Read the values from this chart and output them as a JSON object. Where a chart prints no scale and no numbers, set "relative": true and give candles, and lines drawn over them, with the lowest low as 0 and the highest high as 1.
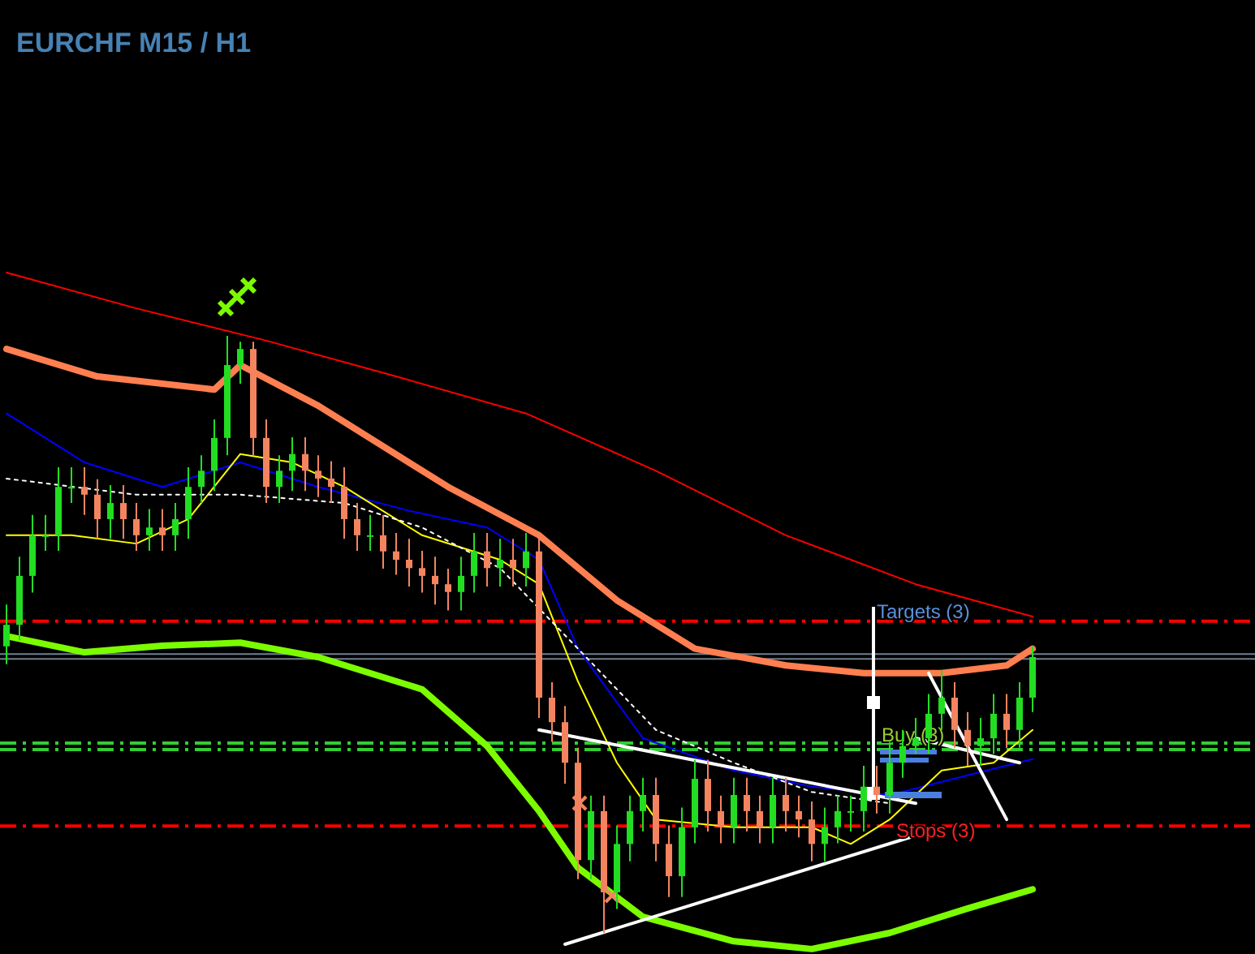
{
  "chart_data": {
    "type": "candlestick",
    "title": "EURCHF M15 / H1",
    "relative": true,
    "tick_labels": false,
    "categories": [
      null,
      null,
      null,
      null,
      null,
      null,
      null,
      null,
      null,
      null,
      null,
      null,
      null,
      null,
      null,
      null,
      null,
      null,
      null,
      null,
      null,
      null,
      null,
      null,
      null,
      null,
      null,
      null,
      null,
      null,
      null,
      null,
      null,
      null,
      null,
      null,
      null,
      null,
      null,
      null,
      null,
      null,
      null,
      null,
      null,
      null,
      null,
      null,
      null,
      null,
      null,
      null,
      null,
      null,
      null,
      null,
      null,
      null,
      null,
      null,
      null,
      null,
      null,
      null,
      null,
      null,
      null,
      null,
      null,
      null,
      null,
      null,
      null,
      null,
      null,
      null,
      null,
      null,
      null,
      null
    ],
    "ohlc": [
      [
        0.48,
        0.55,
        0.45,
        0.516
      ],
      [
        0.516,
        0.63,
        0.49,
        0.598
      ],
      [
        0.598,
        0.7,
        0.57,
        0.666
      ],
      [
        0.666,
        0.7,
        0.64,
        0.666
      ],
      [
        0.666,
        0.78,
        0.64,
        0.747
      ],
      [
        0.747,
        0.78,
        0.72,
        0.747
      ],
      [
        0.747,
        0.78,
        0.7,
        0.734
      ],
      [
        0.734,
        0.76,
        0.66,
        0.693
      ],
      [
        0.693,
        0.75,
        0.66,
        0.72
      ],
      [
        0.72,
        0.75,
        0.66,
        0.693
      ],
      [
        0.693,
        0.72,
        0.64,
        0.666
      ],
      [
        0.666,
        0.71,
        0.64,
        0.679
      ],
      [
        0.679,
        0.71,
        0.64,
        0.666
      ],
      [
        0.666,
        0.72,
        0.64,
        0.693
      ],
      [
        0.693,
        0.78,
        0.66,
        0.747
      ],
      [
        0.747,
        0.8,
        0.72,
        0.774
      ],
      [
        0.774,
        0.86,
        0.74,
        0.829
      ],
      [
        0.829,
        1.0,
        0.8,
        0.951
      ],
      [
        0.951,
        0.99,
        0.92,
        0.978
      ],
      [
        0.978,
        0.99,
        0.8,
        0.829
      ],
      [
        0.829,
        0.86,
        0.72,
        0.747
      ],
      [
        0.747,
        0.8,
        0.72,
        0.774
      ],
      [
        0.774,
        0.83,
        0.74,
        0.802
      ],
      [
        0.802,
        0.83,
        0.74,
        0.774
      ],
      [
        0.774,
        0.8,
        0.73,
        0.761
      ],
      [
        0.761,
        0.79,
        0.72,
        0.747
      ],
      [
        0.747,
        0.78,
        0.66,
        0.693
      ],
      [
        0.693,
        0.72,
        0.64,
        0.666
      ],
      [
        0.666,
        0.7,
        0.64,
        0.666
      ],
      [
        0.666,
        0.7,
        0.61,
        0.639
      ],
      [
        0.639,
        0.67,
        0.6,
        0.625
      ],
      [
        0.625,
        0.66,
        0.58,
        0.611
      ],
      [
        0.611,
        0.64,
        0.57,
        0.598
      ],
      [
        0.598,
        0.63,
        0.55,
        0.584
      ],
      [
        0.584,
        0.61,
        0.54,
        0.571
      ],
      [
        0.571,
        0.63,
        0.54,
        0.598
      ],
      [
        0.598,
        0.67,
        0.57,
        0.639
      ],
      [
        0.639,
        0.67,
        0.58,
        0.611
      ],
      [
        0.611,
        0.66,
        0.58,
        0.625
      ],
      [
        0.625,
        0.66,
        0.58,
        0.611
      ],
      [
        0.611,
        0.67,
        0.58,
        0.639
      ],
      [
        0.639,
        0.67,
        0.36,
        0.394
      ],
      [
        0.394,
        0.42,
        0.32,
        0.353
      ],
      [
        0.353,
        0.38,
        0.25,
        0.285
      ],
      [
        0.285,
        0.31,
        0.09,
        0.122
      ],
      [
        0.122,
        0.23,
        0.09,
        0.204
      ],
      [
        0.204,
        0.23,
        0.0,
        0.068
      ],
      [
        0.068,
        0.18,
        0.04,
        0.149
      ],
      [
        0.149,
        0.23,
        0.12,
        0.204
      ],
      [
        0.204,
        0.26,
        0.17,
        0.231
      ],
      [
        0.231,
        0.26,
        0.12,
        0.149
      ],
      [
        0.149,
        0.18,
        0.06,
        0.095
      ],
      [
        0.095,
        0.21,
        0.06,
        0.177
      ],
      [
        0.177,
        0.29,
        0.15,
        0.258
      ],
      [
        0.258,
        0.29,
        0.17,
        0.204
      ],
      [
        0.204,
        0.23,
        0.15,
        0.177
      ],
      [
        0.177,
        0.26,
        0.15,
        0.231
      ],
      [
        0.231,
        0.26,
        0.17,
        0.204
      ],
      [
        0.204,
        0.23,
        0.15,
        0.177
      ],
      [
        0.177,
        0.26,
        0.15,
        0.231
      ],
      [
        0.231,
        0.26,
        0.17,
        0.204
      ],
      [
        0.204,
        0.23,
        0.16,
        0.19
      ],
      [
        0.19,
        0.22,
        0.12,
        0.149
      ],
      [
        0.149,
        0.21,
        0.12,
        0.177
      ],
      [
        0.177,
        0.23,
        0.15,
        0.204
      ],
      [
        0.204,
        0.23,
        0.17,
        0.204
      ],
      [
        0.204,
        0.28,
        0.17,
        0.245
      ],
      [
        0.245,
        0.28,
        0.2,
        0.231
      ],
      [
        0.231,
        0.32,
        0.2,
        0.285
      ],
      [
        0.285,
        0.34,
        0.26,
        0.313
      ],
      [
        0.313,
        0.36,
        0.3,
        0.326
      ],
      [
        0.326,
        0.4,
        0.3,
        0.367
      ],
      [
        0.367,
        0.44,
        0.34,
        0.394
      ],
      [
        0.394,
        0.42,
        0.31,
        0.34
      ],
      [
        0.34,
        0.37,
        0.28,
        0.313
      ],
      [
        0.313,
        0.36,
        0.28,
        0.326
      ],
      [
        0.326,
        0.4,
        0.3,
        0.367
      ],
      [
        0.367,
        0.4,
        0.31,
        0.34
      ],
      [
        0.34,
        0.42,
        0.31,
        0.394
      ],
      [
        0.394,
        0.48,
        0.37,
        0.462
      ]
    ],
    "series": [
      {
        "type": "line",
        "color": "#ff0000",
        "values": [
          1.106,
          null,
          null,
          null,
          null,
          null,
          null,
          null,
          null,
          null,
          1.046,
          null,
          null,
          null,
          null,
          null,
          null,
          null,
          null,
          null,
          0.992,
          null,
          null,
          null,
          null,
          null,
          null,
          null,
          null,
          null,
          0.932,
          null,
          null,
          null,
          null,
          null,
          null,
          null,
          null,
          null,
          0.87,
          null,
          null,
          null,
          null,
          null,
          null,
          null,
          null,
          null,
          0.774,
          null,
          null,
          null,
          null,
          null,
          null,
          null,
          null,
          null,
          0.666,
          null,
          null,
          null,
          null,
          null,
          null,
          null,
          null,
          null,
          0.584,
          null,
          null,
          null,
          null,
          null,
          null,
          null,
          null,
          0.53
        ]
      },
      {
        "type": "line",
        "color": "#ff7f50",
        "values": [
          0.978,
          null,
          null,
          null,
          null,
          null,
          null,
          0.932,
          null,
          null,
          null,
          null,
          null,
          null,
          null,
          null,
          0.91,
          null,
          0.951,
          null,
          null,
          null,
          null,
          null,
          0.883,
          null,
          null,
          null,
          null,
          null,
          null,
          null,
          null,
          null,
          0.747,
          null,
          null,
          null,
          null,
          null,
          null,
          0.666,
          null,
          null,
          null,
          null,
          null,
          0.557,
          null,
          null,
          null,
          null,
          null,
          0.476,
          null,
          null,
          null,
          null,
          null,
          null,
          0.448,
          null,
          null,
          null,
          null,
          null,
          0.435,
          null,
          null,
          null,
          null,
          null,
          0.435,
          null,
          null,
          null,
          null,
          0.448,
          null,
          0.476
        ]
      },
      {
        "type": "line",
        "color": "#7cfc00",
        "values": [
          0.497,
          null,
          null,
          null,
          null,
          null,
          0.47,
          null,
          null,
          null,
          null,
          null,
          0.481,
          null,
          null,
          null,
          null,
          null,
          0.486,
          null,
          null,
          null,
          null,
          null,
          0.462,
          null,
          null,
          null,
          null,
          null,
          null,
          null,
          0.408,
          null,
          null,
          null,
          null,
          0.313,
          null,
          null,
          null,
          0.204,
          null,
          null,
          0.109,
          null,
          null,
          null,
          null,
          0.027,
          null,
          null,
          null,
          null,
          null,
          null,
          -0.014,
          null,
          null,
          null,
          null,
          null,
          -0.027,
          null,
          null,
          null,
          null,
          null,
          0.0,
          null,
          null,
          null,
          null,
          null,
          0.041,
          null,
          null,
          null,
          null,
          0.073
        ]
      },
      {
        "type": "line",
        "color": "#0000ff",
        "values": [
          0.87,
          null,
          null,
          null,
          null,
          null,
          0.788,
          null,
          null,
          null,
          null,
          null,
          0.747,
          null,
          null,
          null,
          null,
          null,
          0.788,
          null,
          null,
          null,
          null,
          null,
          0.747,
          null,
          null,
          null,
          null,
          null,
          null,
          0.707,
          null,
          null,
          null,
          null,
          null,
          0.679,
          null,
          null,
          null,
          0.625,
          null,
          null,
          0.476,
          null,
          null,
          null,
          null,
          0.326,
          null,
          null,
          null,
          null,
          null,
          null,
          0.272,
          null,
          null,
          null,
          null,
          null,
          0.245,
          null,
          null,
          null,
          null,
          null,
          0.231,
          null,
          null,
          null,
          null,
          null,
          0.264,
          null,
          null,
          null,
          null,
          0.291
        ]
      },
      {
        "type": "line",
        "color": "#ffff00",
        "values": [
          0.666,
          null,
          null,
          null,
          null,
          0.666,
          null,
          null,
          null,
          null,
          0.652,
          null,
          null,
          null,
          0.693,
          null,
          null,
          null,
          0.802,
          null,
          null,
          null,
          0.788,
          null,
          null,
          null,
          0.747,
          null,
          null,
          null,
          null,
          null,
          0.666,
          null,
          null,
          null,
          null,
          null,
          0.625,
          null,
          null,
          0.584,
          null,
          null,
          0.421,
          null,
          null,
          0.285,
          null,
          null,
          0.19,
          null,
          null,
          null,
          null,
          null,
          0.177,
          null,
          null,
          null,
          null,
          null,
          0.177,
          null,
          null,
          0.149,
          null,
          null,
          0.19,
          null,
          null,
          null,
          0.272,
          null,
          null,
          null,
          0.285,
          null,
          null,
          0.34
        ]
      },
      {
        "type": "line",
        "color": "#ffffff",
        "line_style": "dotted",
        "values": [
          0.761,
          null,
          null,
          null,
          null,
          null,
          null,
          null,
          null,
          null,
          0.734,
          null,
          null,
          null,
          null,
          null,
          null,
          null,
          0.734,
          null,
          null,
          null,
          null,
          null,
          null,
          null,
          0.72,
          null,
          null,
          null,
          null,
          null,
          0.679,
          null,
          null,
          null,
          null,
          null,
          0.611,
          null,
          null,
          null,
          null,
          null,
          0.476,
          null,
          null,
          null,
          null,
          null,
          0.34,
          null,
          null,
          null,
          null,
          null,
          0.285,
          null,
          null,
          null,
          null,
          null,
          0.236,
          null,
          null,
          null,
          null,
          null,
          0.217,
          null,
          null,
          null,
          null,
          null,
          null,
          null,
          null,
          null,
          null,
          null
        ]
      },
      {
        "type": "line",
        "color": "#ffffff",
        "values": [
          null,
          null,
          null,
          null,
          null,
          null,
          null,
          null,
          null,
          null,
          null,
          null,
          null,
          null,
          null,
          null,
          null,
          null,
          null,
          null,
          null,
          null,
          null,
          null,
          null,
          null,
          null,
          null,
          null,
          null,
          null,
          null,
          null,
          null,
          null,
          null,
          null,
          null,
          null,
          null,
          null,
          0.34,
          null,
          null,
          null,
          null,
          null,
          null,
          null,
          null,
          null,
          null,
          null,
          null,
          null,
          null,
          null,
          null,
          null,
          null,
          null,
          null,
          null,
          null,
          null,
          null,
          null,
          null,
          null,
          null,
          0.217,
          null,
          null,
          null,
          null,
          null,
          null,
          null,
          null,
          null
        ]
      },
      {
        "type": "line",
        "color": "#ffffff",
        "values": [
          null,
          null,
          null,
          null,
          null,
          null,
          null,
          null,
          null,
          null,
          null,
          null,
          null,
          null,
          null,
          null,
          null,
          null,
          null,
          null,
          null,
          null,
          null,
          null,
          null,
          null,
          null,
          null,
          null,
          null,
          null,
          null,
          null,
          null,
          null,
          null,
          null,
          null,
          null,
          null,
          null,
          null,
          null,
          -0.019,
          null,
          null,
          null,
          null,
          null,
          null,
          null,
          null,
          null,
          null,
          null,
          null,
          null,
          null,
          null,
          null,
          null,
          null,
          null,
          null,
          null,
          null,
          null,
          null,
          null,
          null,
          0.163,
          null,
          null,
          null,
          null,
          null,
          null,
          null,
          null,
          null
        ]
      },
      {
        "type": "line",
        "color": "#ffffff",
        "values": [
          null,
          null,
          null,
          null,
          null,
          null,
          null,
          null,
          null,
          null,
          null,
          null,
          null,
          null,
          null,
          null,
          null,
          null,
          null,
          null,
          null,
          null,
          null,
          null,
          null,
          null,
          null,
          null,
          null,
          null,
          null,
          null,
          null,
          null,
          null,
          null,
          null,
          null,
          null,
          null,
          null,
          null,
          null,
          null,
          null,
          null,
          null,
          null,
          null,
          null,
          null,
          null,
          null,
          null,
          null,
          null,
          null,
          null,
          null,
          null,
          null,
          null,
          null,
          null,
          null,
          null,
          null,
          null,
          null,
          null,
          null,
          0.435,
          null,
          null,
          null,
          null,
          null,
          0.19,
          null,
          null
        ]
      },
      {
        "type": "line",
        "color": "#ffffff",
        "values": [
          null,
          null,
          null,
          null,
          null,
          null,
          null,
          null,
          null,
          null,
          null,
          null,
          null,
          null,
          null,
          null,
          null,
          null,
          null,
          null,
          null,
          null,
          null,
          null,
          null,
          null,
          null,
          null,
          null,
          null,
          null,
          null,
          null,
          null,
          null,
          null,
          null,
          null,
          null,
          null,
          null,
          null,
          null,
          null,
          null,
          null,
          null,
          null,
          null,
          null,
          null,
          null,
          null,
          null,
          null,
          null,
          null,
          null,
          null,
          null,
          null,
          null,
          null,
          null,
          null,
          null,
          null,
          null,
          null,
          null,
          0.326,
          null,
          null,
          null,
          null,
          null,
          null,
          null,
          0.285,
          null
        ]
      }
    ],
    "ref_lines": [
      {
        "axis": "y",
        "value": 0.522,
        "color": "#ff0000",
        "line_style": "dashed"
      },
      {
        "axis": "y",
        "value": 0.179,
        "color": "#ff0000",
        "line_style": "dashed"
      },
      {
        "axis": "y",
        "value": 0.318,
        "color": "#32cd32",
        "line_style": "dashed"
      },
      {
        "axis": "y",
        "value": 0.307,
        "color": "#32cd32",
        "line_style": "dashed"
      },
      {
        "axis": "y",
        "value": 0.467,
        "color": "#708090"
      },
      {
        "axis": "y",
        "value": 0.459,
        "color": "#708090"
      }
    ],
    "annotations": [
      "Targets (3)",
      "Buy (3)",
      "Stops (3)"
    ]
  }
}
